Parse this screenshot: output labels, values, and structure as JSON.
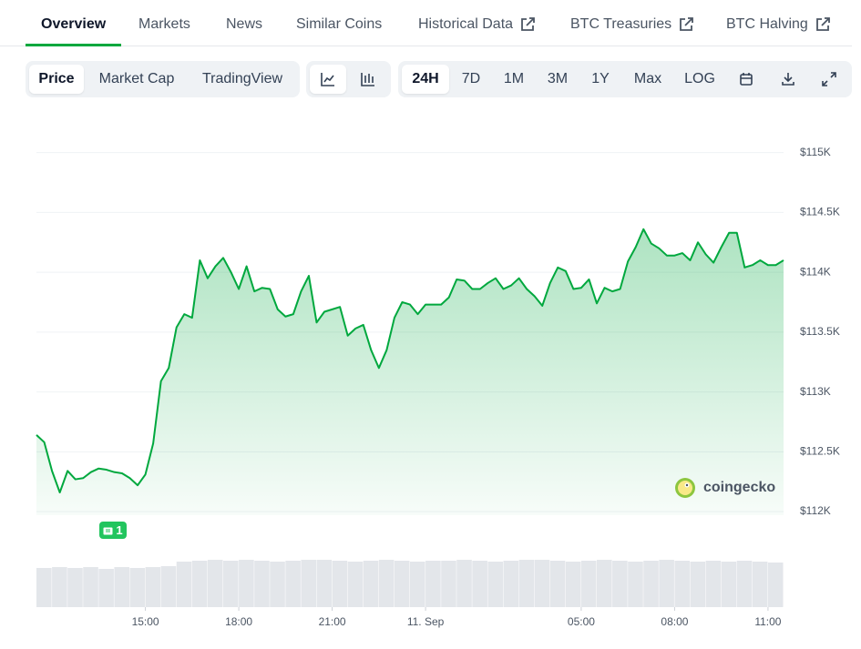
{
  "tabs": [
    "Overview",
    "Markets",
    "News",
    "Similar Coins",
    "Historical Data",
    "BTC Treasuries",
    "BTC Halving"
  ],
  "toolbar": {
    "metric_buttons": [
      "Price",
      "Market Cap",
      "TradingView"
    ],
    "range_buttons": [
      "24H",
      "7D",
      "1M",
      "3M",
      "1Y",
      "Max",
      "LOG"
    ]
  },
  "chart_data": {
    "type": "line",
    "color": "#00a83e",
    "x": [
      -12.5,
      -12.25,
      -12,
      -11.75,
      -11.5,
      -11.25,
      -11,
      -10.75,
      -10.5,
      -10.25,
      -10,
      -9.75,
      -9.5,
      -9.25,
      -9,
      -8.75,
      -8.5,
      -8.25,
      -8,
      -7.75,
      -7.5,
      -7.25,
      -7,
      -6.75,
      -6.5,
      -6.25,
      -6,
      -5.75,
      -5.5,
      -5.25,
      -5,
      -4.75,
      -4.5,
      -4.25,
      -4,
      -3.75,
      -3.5,
      -3.25,
      -3,
      -2.75,
      -2.5,
      -2.25,
      -2,
      -1.75,
      -1.5,
      -1.25,
      -1,
      -0.75,
      -0.5,
      -0.25,
      0,
      0.25,
      0.5,
      0.75,
      1,
      1.25,
      1.5,
      1.75,
      2,
      2.25,
      2.5,
      2.75,
      3,
      3.25,
      3.5,
      3.75,
      4,
      4.25,
      4.5,
      4.75,
      5,
      5.25,
      5.5,
      5.75,
      6,
      6.25,
      6.5,
      6.75,
      7,
      7.25,
      7.5,
      7.75,
      8,
      8.25,
      8.5,
      8.75,
      9,
      9.25,
      9.5,
      9.75,
      10,
      10.25,
      10.5,
      10.75,
      11,
      11.25,
      11.5
    ],
    "values": [
      112640,
      112580,
      112340,
      112160,
      112340,
      112270,
      112280,
      112330,
      112360,
      112350,
      112330,
      112320,
      112280,
      112220,
      112310,
      112570,
      113090,
      113200,
      113540,
      113650,
      113620,
      114100,
      113950,
      114050,
      114120,
      114000,
      113860,
      114050,
      113840,
      113870,
      113860,
      113690,
      113630,
      113650,
      113840,
      113970,
      113580,
      113670,
      113690,
      113710,
      113470,
      113530,
      113560,
      113350,
      113200,
      113350,
      113620,
      113750,
      113730,
      113650,
      113730,
      113730,
      113730,
      113790,
      113940,
      113930,
      113860,
      113860,
      113910,
      113950,
      113860,
      113890,
      113950,
      113860,
      113800,
      113720,
      113910,
      114040,
      114010,
      113860,
      113870,
      113940,
      113740,
      113870,
      113840,
      113860,
      114090,
      114210,
      114360,
      114240,
      114200,
      114140,
      114140,
      114160,
      114100,
      114250,
      114150,
      114080,
      114210,
      114330,
      114330,
      114040,
      114060,
      114100,
      114060,
      114060,
      114100
    ],
    "xlim": [
      -12.5,
      11.5
    ],
    "xticks": [
      {
        "value": -9,
        "label": "15:00"
      },
      {
        "value": -6,
        "label": "18:00"
      },
      {
        "value": -3,
        "label": "21:00"
      },
      {
        "value": 0,
        "label": "11. Sep"
      },
      {
        "value": 5,
        "label": "05:00"
      },
      {
        "value": 8,
        "label": "08:00"
      },
      {
        "value": 11,
        "label": "11:00"
      }
    ],
    "ylim": [
      111970,
      115020
    ],
    "yticks": [
      {
        "value": 112000,
        "label": "$112K"
      },
      {
        "value": 112500,
        "label": "$112.5K"
      },
      {
        "value": 113000,
        "label": "$113K"
      },
      {
        "value": 113500,
        "label": "$113.5K"
      },
      {
        "value": 114000,
        "label": "$114K"
      },
      {
        "value": 114500,
        "label": "$114.5K"
      },
      {
        "value": 115000,
        "label": "$115K"
      }
    ],
    "grid": true,
    "annotations": [
      "1"
    ],
    "watermark": "coingecko",
    "volume": {
      "color": "#e3e6ea",
      "ylim": [
        0,
        53
      ],
      "values": [
        43,
        44,
        43,
        44,
        42,
        44,
        43,
        44,
        45,
        50,
        51,
        52,
        51,
        52,
        51,
        50,
        51,
        52,
        52,
        51,
        50,
        51,
        52,
        51,
        50,
        51,
        51,
        52,
        51,
        50,
        51,
        52,
        52,
        51,
        50,
        51,
        52,
        51,
        50,
        51,
        52,
        51,
        50,
        51,
        50,
        51,
        50,
        49
      ]
    }
  }
}
